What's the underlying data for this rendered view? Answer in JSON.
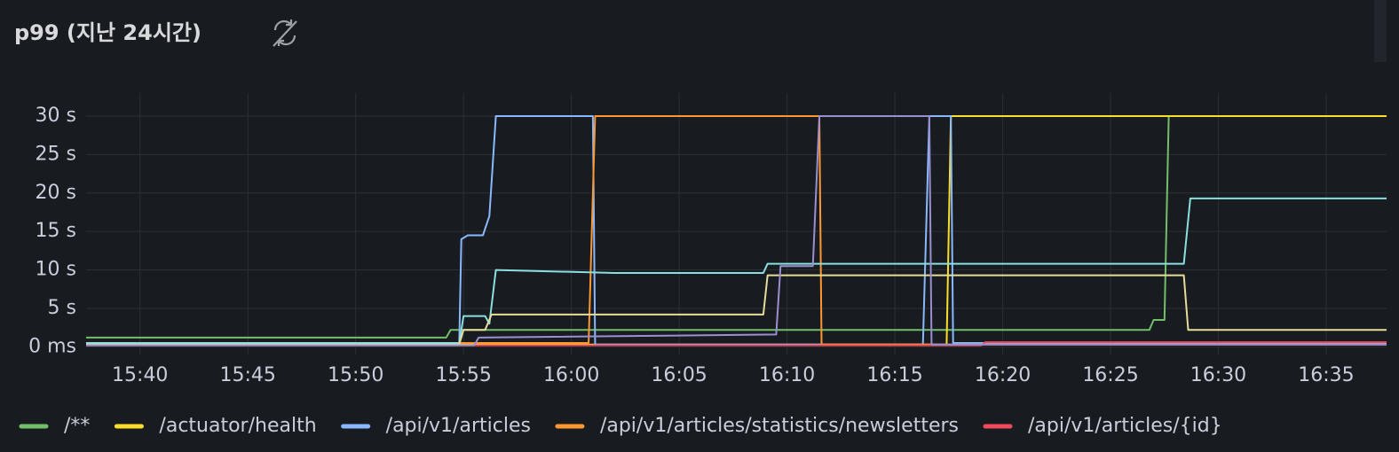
{
  "chart_data": {
    "type": "line",
    "title": "p99 (지난 24시간)",
    "xlim": [
      937.5,
      997.8
    ],
    "ylim": [
      -1,
      33
    ],
    "xticks": [
      {
        "value": 940,
        "label": "15:40"
      },
      {
        "value": 945,
        "label": "15:45"
      },
      {
        "value": 950,
        "label": "15:50"
      },
      {
        "value": 955,
        "label": "15:55"
      },
      {
        "value": 960,
        "label": "16:00"
      },
      {
        "value": 965,
        "label": "16:05"
      },
      {
        "value": 970,
        "label": "16:10"
      },
      {
        "value": 975,
        "label": "16:15"
      },
      {
        "value": 980,
        "label": "16:20"
      },
      {
        "value": 985,
        "label": "16:25"
      },
      {
        "value": 990,
        "label": "16:30"
      },
      {
        "value": 995,
        "label": "16:35"
      }
    ],
    "yticks": [
      {
        "value": 0,
        "label": "0 ms"
      },
      {
        "value": 5,
        "label": "5 s"
      },
      {
        "value": 10,
        "label": "10 s"
      },
      {
        "value": 15,
        "label": "15 s"
      },
      {
        "value": 20,
        "label": "20 s"
      },
      {
        "value": 25,
        "label": "25 s"
      },
      {
        "value": 30,
        "label": "30 s"
      }
    ],
    "grid": true,
    "series": [
      {
        "name": "/**",
        "color": "#73bf69",
        "x": [
          937.5,
          954.2,
          954.4,
          986.8,
          987.0,
          987.5,
          987.7,
          997.8
        ],
        "values": [
          1.2,
          1.2,
          2.2,
          2.2,
          3.5,
          3.5,
          30,
          30
        ]
      },
      {
        "name": "/actuator/health",
        "color": "#fade2a",
        "x": [
          937.5,
          977.4,
          977.6,
          997.8
        ],
        "values": [
          0.3,
          0.3,
          30,
          30
        ]
      },
      {
        "name": "/api/v1/articles",
        "color": "#8ab8ff",
        "x": [
          937.5,
          954.8,
          954.9,
          955.2,
          955.9,
          956.2,
          956.5,
          961.0,
          961.1,
          976.3,
          976.6,
          977.6,
          977.7,
          997.8
        ],
        "values": [
          0.2,
          0.2,
          14,
          14.5,
          14.5,
          17,
          30,
          30,
          0.3,
          0.3,
          30,
          30,
          0.5,
          0.5
        ]
      },
      {
        "name": "/api/v1/articles/statistics/newsletters",
        "color": "#ff9830",
        "x": [
          937.5,
          960.8,
          961.1,
          971.5,
          971.6,
          997.8
        ],
        "values": [
          0.5,
          0.5,
          30,
          30,
          0.3,
          0.3
        ]
      },
      {
        "name": "/api/v1/articles/{id}",
        "color": "#f2495c",
        "x": [
          937.5,
          979.0,
          979.2,
          997.8
        ],
        "values": [
          0.2,
          0.2,
          0.6,
          0.6
        ]
      },
      {
        "color": "#8ae0e0",
        "x": [
          937.5,
          954.8,
          955.0,
          956.0,
          956.2,
          956.5,
          962.0,
          968.9,
          969.1,
          988.4,
          988.7,
          997.8
        ],
        "values": [
          0.5,
          0.5,
          4,
          4,
          3,
          10,
          9.6,
          9.6,
          10.8,
          10.8,
          19.3,
          19.3
        ]
      },
      {
        "color": "#e8dc9a",
        "x": [
          937.5,
          954.8,
          955.0,
          956.0,
          956.3,
          968.9,
          969.1,
          988.4,
          988.6,
          997.8
        ],
        "values": [
          0.3,
          0.3,
          2.2,
          2.2,
          4.2,
          4.2,
          9.3,
          9.3,
          2.2,
          2.2
        ]
      },
      {
        "color": "#9a8fd0",
        "x": [
          937.5,
          955.5,
          955.7,
          969.5,
          969.7,
          971.2,
          971.5,
          976.6,
          976.7,
          997.8
        ],
        "values": [
          0.2,
          0.2,
          1.2,
          1.6,
          10.5,
          10.5,
          30,
          30,
          0.3,
          0.3
        ]
      }
    ]
  }
}
